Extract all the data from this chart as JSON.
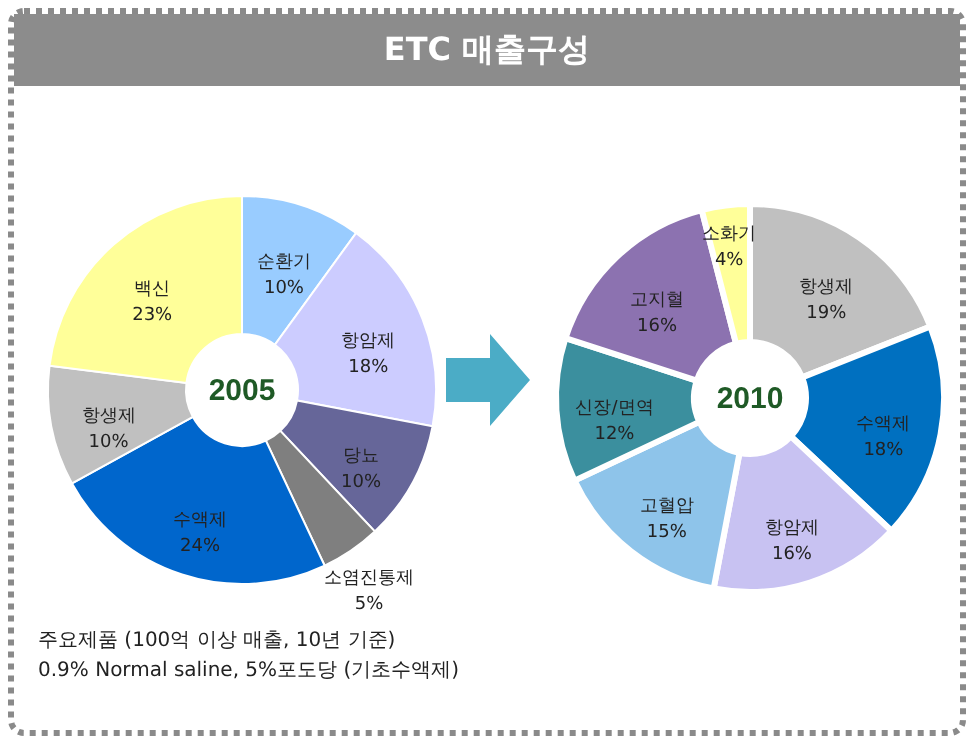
{
  "chart_data": [
    {
      "type": "other",
      "title": "ETC 매출구성",
      "annotations": [
        "주요제품 (100억 이상 매출, 10년 기준)",
        "0.9% Normal saline, 5%포도당 (기초수액제)"
      ]
    },
    {
      "type": "donut",
      "title": "2005",
      "categories": [
        "순환기",
        "항암제",
        "당뇨",
        "소염진통제",
        "수액제",
        "항생제",
        "백신"
      ],
      "values": [
        10,
        18,
        10,
        5,
        24,
        10,
        23
      ],
      "value_labels": [
        "10%",
        "18%",
        "10%",
        "5%",
        "24%",
        "10%",
        "23%"
      ],
      "colors": [
        "#99ccff",
        "#ccccff",
        "#666699",
        "#7f7f7f",
        "#0066cc",
        "#c0c0c0",
        "#ffff99"
      ]
    },
    {
      "type": "donut",
      "title": "2010",
      "categories": [
        "항생제",
        "수액제",
        "항암제",
        "고혈압",
        "신장/면역",
        "고지혈",
        "소화기"
      ],
      "values": [
        19,
        18,
        16,
        15,
        12,
        16,
        4
      ],
      "value_labels": [
        "19%",
        "18%",
        "16%",
        "15%",
        "12%",
        "16%",
        "4%"
      ],
      "colors": [
        "#c0c0c0",
        "#0070c0",
        "#c8c2f2",
        "#8ec4ea",
        "#3b8f9e",
        "#8c72b0",
        "#ffff99"
      ]
    }
  ]
}
